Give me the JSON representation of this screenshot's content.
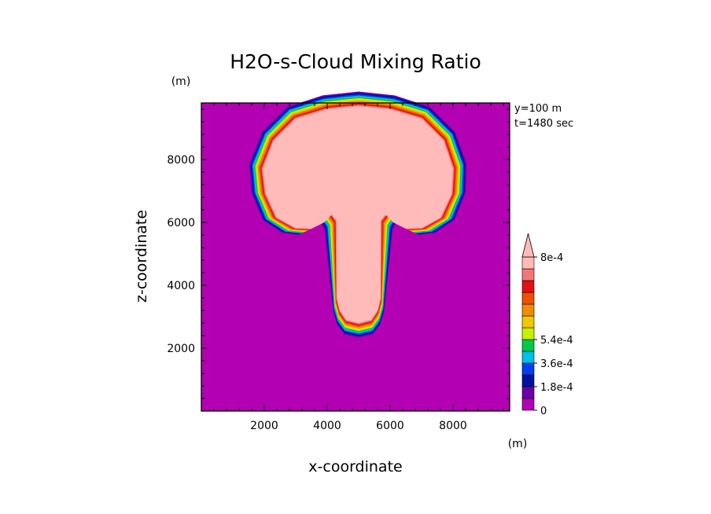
{
  "chart_data": {
    "type": "heatmap",
    "title": "H2O-s-Cloud Mixing Ratio",
    "xlabel": "x-coordinate",
    "ylabel": "z-coordinate",
    "x_unit": "(m)",
    "z_unit": "(m)",
    "xlim": [
      0,
      9800
    ],
    "ylim": [
      0,
      9800
    ],
    "x_ticks": [
      2000,
      4000,
      6000,
      8000
    ],
    "y_ticks": [
      2000,
      4000,
      6000,
      8000
    ],
    "annotations": [
      "y=100 m",
      "t=1480 sec"
    ],
    "background_value": 0,
    "colorbar": {
      "min": 0,
      "max": 0.0008,
      "step": 9e-05,
      "extend": "max",
      "tick_values": [
        0,
        0.00018,
        0.00036,
        0.00054,
        0.0008
      ],
      "tick_labels": [
        "0",
        "1.8e-4",
        "3.6e-4",
        "5.4e-4",
        "8e-4"
      ],
      "colors": [
        "#b300b3",
        "#6a00a8",
        "#0010a0",
        "#0040ee",
        "#00bfe8",
        "#00c84a",
        "#c8f000",
        "#f0c800",
        "#f08c00",
        "#ee5000",
        "#e41010",
        "#f07878",
        "#ffbaba"
      ]
    },
    "cloud_outline": {
      "description": "mushroom-shaped cloud: cap spanning x 1900-8000, z 5800-9700; stem x 4300-5700 down to z 2800",
      "points": [
        [
          5000,
          9700
        ],
        [
          6000,
          9600
        ],
        [
          7000,
          9300
        ],
        [
          7700,
          8600
        ],
        [
          8000,
          7700
        ],
        [
          7950,
          6900
        ],
        [
          7600,
          6150
        ],
        [
          7000,
          5820
        ],
        [
          6500,
          5800
        ],
        [
          6100,
          6000
        ],
        [
          5850,
          6250
        ],
        [
          5700,
          6050
        ],
        [
          5700,
          3600
        ],
        [
          5600,
          3200
        ],
        [
          5400,
          2900
        ],
        [
          5000,
          2800
        ],
        [
          4600,
          2900
        ],
        [
          4400,
          3200
        ],
        [
          4300,
          3600
        ],
        [
          4300,
          6050
        ],
        [
          4150,
          6250
        ],
        [
          3900,
          6000
        ],
        [
          3500,
          5800
        ],
        [
          3000,
          5820
        ],
        [
          2400,
          6150
        ],
        [
          2050,
          6900
        ],
        [
          1950,
          7700
        ],
        [
          2300,
          8600
        ],
        [
          3000,
          9300
        ],
        [
          4000,
          9600
        ]
      ]
    }
  }
}
